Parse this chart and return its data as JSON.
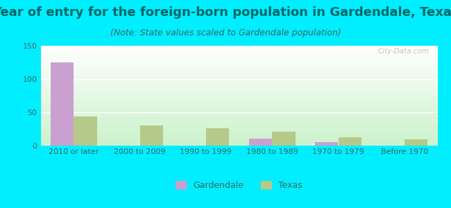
{
  "title": "Year of entry for the foreign-born population in Gardendale, Texas",
  "subtitle": "(Note: State values scaled to Gardendale population)",
  "categories": [
    "2010 or later",
    "2000 to 2009",
    "1990 to 1999",
    "1980 to 1989",
    "1970 to 1979",
    "Before 1970"
  ],
  "gardendale_values": [
    125,
    0,
    0,
    10,
    5,
    0
  ],
  "texas_values": [
    44,
    30,
    26,
    21,
    13,
    9
  ],
  "gardendale_color": "#c9a0d0",
  "texas_color": "#b5c98a",
  "background_color": "#00eeff",
  "ylim": [
    0,
    150
  ],
  "yticks": [
    0,
    50,
    100,
    150
  ],
  "bar_width": 0.35,
  "title_fontsize": 13,
  "subtitle_fontsize": 9,
  "tick_fontsize": 8,
  "legend_fontsize": 9,
  "title_color": "#006666",
  "subtitle_color": "#336666",
  "tick_color": "#336666",
  "watermark_text": "City-Data.com",
  "grid_color": "#ffffff",
  "plot_bg_top": "#ffffff",
  "plot_bg_bottom": "#cceecc"
}
